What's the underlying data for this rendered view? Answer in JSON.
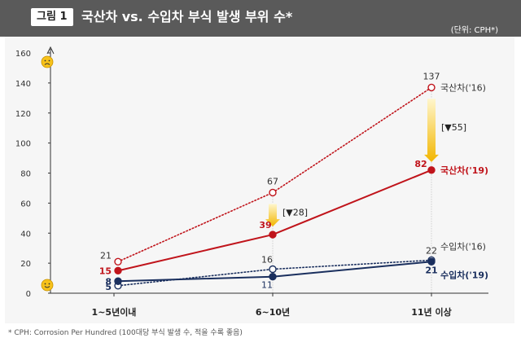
{
  "header": {
    "badge": "그림 1",
    "title": "국산차 vs. 수입차 부식 발생 부위 수*",
    "unit": "(단위: CPH*)"
  },
  "footnote": "* CPH: Corrosion Per Hundred (100대당 부식 발생 수, 적을 수록 좋음)",
  "icons": {
    "top": "frown-face-icon",
    "bottom": "smile-face-icon"
  },
  "colors": {
    "domestic": "#c0141b",
    "imported": "#1a2f5e",
    "arrow": "#f2b600"
  },
  "chart_data": {
    "type": "line",
    "categories": [
      "1~5년이내",
      "6~10년",
      "11년 이상"
    ],
    "yticks": [
      0,
      20,
      40,
      60,
      80,
      100,
      120,
      140,
      160
    ],
    "ylim": [
      0,
      160
    ],
    "series": [
      {
        "name": "국산차('16)",
        "values": [
          21,
          67,
          137
        ],
        "color": "#c0141b",
        "style": "dotted",
        "marker": "hollow"
      },
      {
        "name": "국산차('19)",
        "values": [
          15,
          39,
          82
        ],
        "color": "#c0141b",
        "style": "solid",
        "marker": "filled"
      },
      {
        "name": "수입차('16)",
        "values": [
          5,
          16,
          22
        ],
        "color": "#1a2f5e",
        "style": "dotted",
        "marker": "hollow"
      },
      {
        "name": "수입차('19)",
        "values": [
          8,
          11,
          21
        ],
        "color": "#1a2f5e",
        "style": "solid",
        "marker": "filled"
      }
    ],
    "annotations": [
      {
        "category": 1,
        "from": 67,
        "to": 39,
        "text": "[▼28]"
      },
      {
        "category": 2,
        "from": 137,
        "to": 82,
        "text": "[▼55]"
      }
    ]
  }
}
